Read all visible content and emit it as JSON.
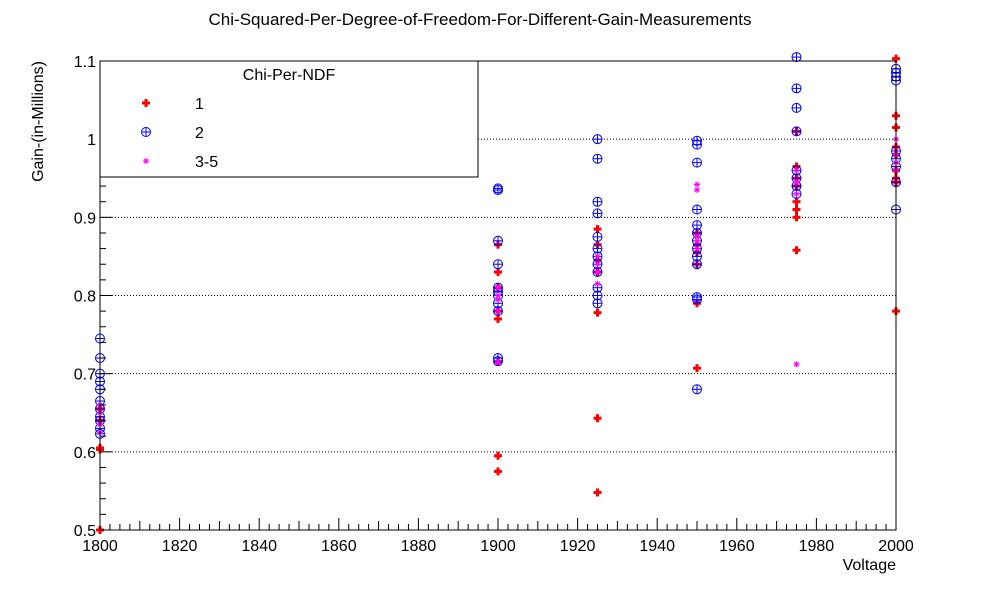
{
  "chart_data": {
    "type": "scatter",
    "title": "Chi-Squared-Per-Degree-of-Freedom-For-Different-Gain-Measurements",
    "xlabel": "Voltage",
    "ylabel": "Gain-(in-Millions)",
    "xlim": [
      1800,
      2000
    ],
    "ylim": [
      0.5,
      1.1
    ],
    "x_ticks": [
      "1800",
      "1820",
      "1840",
      "1860",
      "1880",
      "1900",
      "1920",
      "1940",
      "1960",
      "1980",
      "2000"
    ],
    "y_ticks": [
      "0.5",
      "0.6",
      "0.7",
      "0.8",
      "0.9",
      "1",
      "1.1"
    ],
    "grid": "horizontal dotted",
    "legend": {
      "title": "Chi-Per-NDF",
      "placement": "top-left"
    },
    "series": [
      {
        "name": "1",
        "marker": "plus",
        "color": "#ff0000",
        "points": [
          [
            1800,
            0.5
          ],
          [
            1800,
            0.603
          ],
          [
            1800,
            0.605
          ],
          [
            1800,
            0.64
          ],
          [
            1800,
            0.655
          ],
          [
            1900,
            0.575
          ],
          [
            1900,
            0.595
          ],
          [
            1900,
            0.715
          ],
          [
            1900,
            0.77
          ],
          [
            1900,
            0.78
          ],
          [
            1900,
            0.81
          ],
          [
            1900,
            0.83
          ],
          [
            1900,
            0.865
          ],
          [
            1925,
            0.548
          ],
          [
            1925,
            0.643
          ],
          [
            1925,
            0.778
          ],
          [
            1925,
            0.83
          ],
          [
            1925,
            0.845
          ],
          [
            1925,
            0.865
          ],
          [
            1925,
            0.885
          ],
          [
            1950,
            0.707
          ],
          [
            1950,
            0.79
          ],
          [
            1950,
            0.84
          ],
          [
            1950,
            0.855
          ],
          [
            1950,
            0.865
          ],
          [
            1950,
            0.88
          ],
          [
            1975,
            0.858
          ],
          [
            1975,
            0.9
          ],
          [
            1975,
            0.91
          ],
          [
            1975,
            0.92
          ],
          [
            1975,
            0.94
          ],
          [
            1975,
            0.95
          ],
          [
            1975,
            0.965
          ],
          [
            1975,
            1.01
          ],
          [
            2000,
            0.78
          ],
          [
            2000,
            0.945
          ],
          [
            2000,
            0.95
          ],
          [
            2000,
            0.96
          ],
          [
            2000,
            0.98
          ],
          [
            2000,
            0.99
          ],
          [
            2000,
            1.015
          ],
          [
            2000,
            1.03
          ],
          [
            2000,
            1.103
          ]
        ]
      },
      {
        "name": "2",
        "marker": "circle-plus",
        "color": "#0000ff",
        "points": [
          [
            1800,
            0.623
          ],
          [
            1800,
            0.63
          ],
          [
            1800,
            0.64
          ],
          [
            1800,
            0.645
          ],
          [
            1800,
            0.655
          ],
          [
            1800,
            0.665
          ],
          [
            1800,
            0.68
          ],
          [
            1800,
            0.69
          ],
          [
            1800,
            0.7
          ],
          [
            1800,
            0.72
          ],
          [
            1800,
            0.745
          ],
          [
            1900,
            0.716
          ],
          [
            1900,
            0.72
          ],
          [
            1900,
            0.78
          ],
          [
            1900,
            0.79
          ],
          [
            1900,
            0.8
          ],
          [
            1900,
            0.805
          ],
          [
            1900,
            0.81
          ],
          [
            1900,
            0.84
          ],
          [
            1900,
            0.87
          ],
          [
            1900,
            0.935
          ],
          [
            1900,
            0.937
          ],
          [
            1925,
            0.79
          ],
          [
            1925,
            0.8
          ],
          [
            1925,
            0.81
          ],
          [
            1925,
            0.83
          ],
          [
            1925,
            0.84
          ],
          [
            1925,
            0.85
          ],
          [
            1925,
            0.86
          ],
          [
            1925,
            0.875
          ],
          [
            1925,
            0.905
          ],
          [
            1925,
            0.92
          ],
          [
            1925,
            0.975
          ],
          [
            1925,
            1.0
          ],
          [
            1950,
            0.68
          ],
          [
            1950,
            0.795
          ],
          [
            1950,
            0.798
          ],
          [
            1950,
            0.84
          ],
          [
            1950,
            0.85
          ],
          [
            1950,
            0.86
          ],
          [
            1950,
            0.87
          ],
          [
            1950,
            0.88
          ],
          [
            1950,
            0.89
          ],
          [
            1950,
            0.91
          ],
          [
            1950,
            0.97
          ],
          [
            1950,
            0.993
          ],
          [
            1950,
            0.998
          ],
          [
            1975,
            0.93
          ],
          [
            1975,
            0.94
          ],
          [
            1975,
            0.95
          ],
          [
            1975,
            0.96
          ],
          [
            1975,
            1.01
          ],
          [
            1975,
            1.04
          ],
          [
            1975,
            1.065
          ],
          [
            1975,
            1.105
          ],
          [
            2000,
            0.91
          ],
          [
            2000,
            0.945
          ],
          [
            2000,
            0.965
          ],
          [
            2000,
            0.975
          ],
          [
            2000,
            0.985
          ],
          [
            2000,
            1.075
          ],
          [
            2000,
            1.08
          ],
          [
            2000,
            1.085
          ],
          [
            2000,
            1.09
          ]
        ]
      },
      {
        "name": "3-5",
        "marker": "star",
        "color": "#ff00ff",
        "points": [
          [
            1800,
            0.625
          ],
          [
            1800,
            0.635
          ],
          [
            1800,
            0.65
          ],
          [
            1800,
            0.66
          ],
          [
            1900,
            0.715
          ],
          [
            1900,
            0.78
          ],
          [
            1900,
            0.795
          ],
          [
            1900,
            0.8
          ],
          [
            1900,
            0.81
          ],
          [
            1925,
            0.815
          ],
          [
            1925,
            0.83
          ],
          [
            1925,
            0.84
          ],
          [
            1925,
            0.85
          ],
          [
            1950,
            0.86
          ],
          [
            1950,
            0.87
          ],
          [
            1950,
            0.875
          ],
          [
            1950,
            0.935
          ],
          [
            1950,
            0.942
          ],
          [
            1975,
            0.712
          ],
          [
            1975,
            0.93
          ],
          [
            1975,
            0.945
          ],
          [
            1975,
            0.96
          ],
          [
            2000,
            0.96
          ],
          [
            2000,
            0.97
          ],
          [
            2000,
            0.98
          ],
          [
            2000,
            1.0
          ]
        ]
      }
    ]
  }
}
